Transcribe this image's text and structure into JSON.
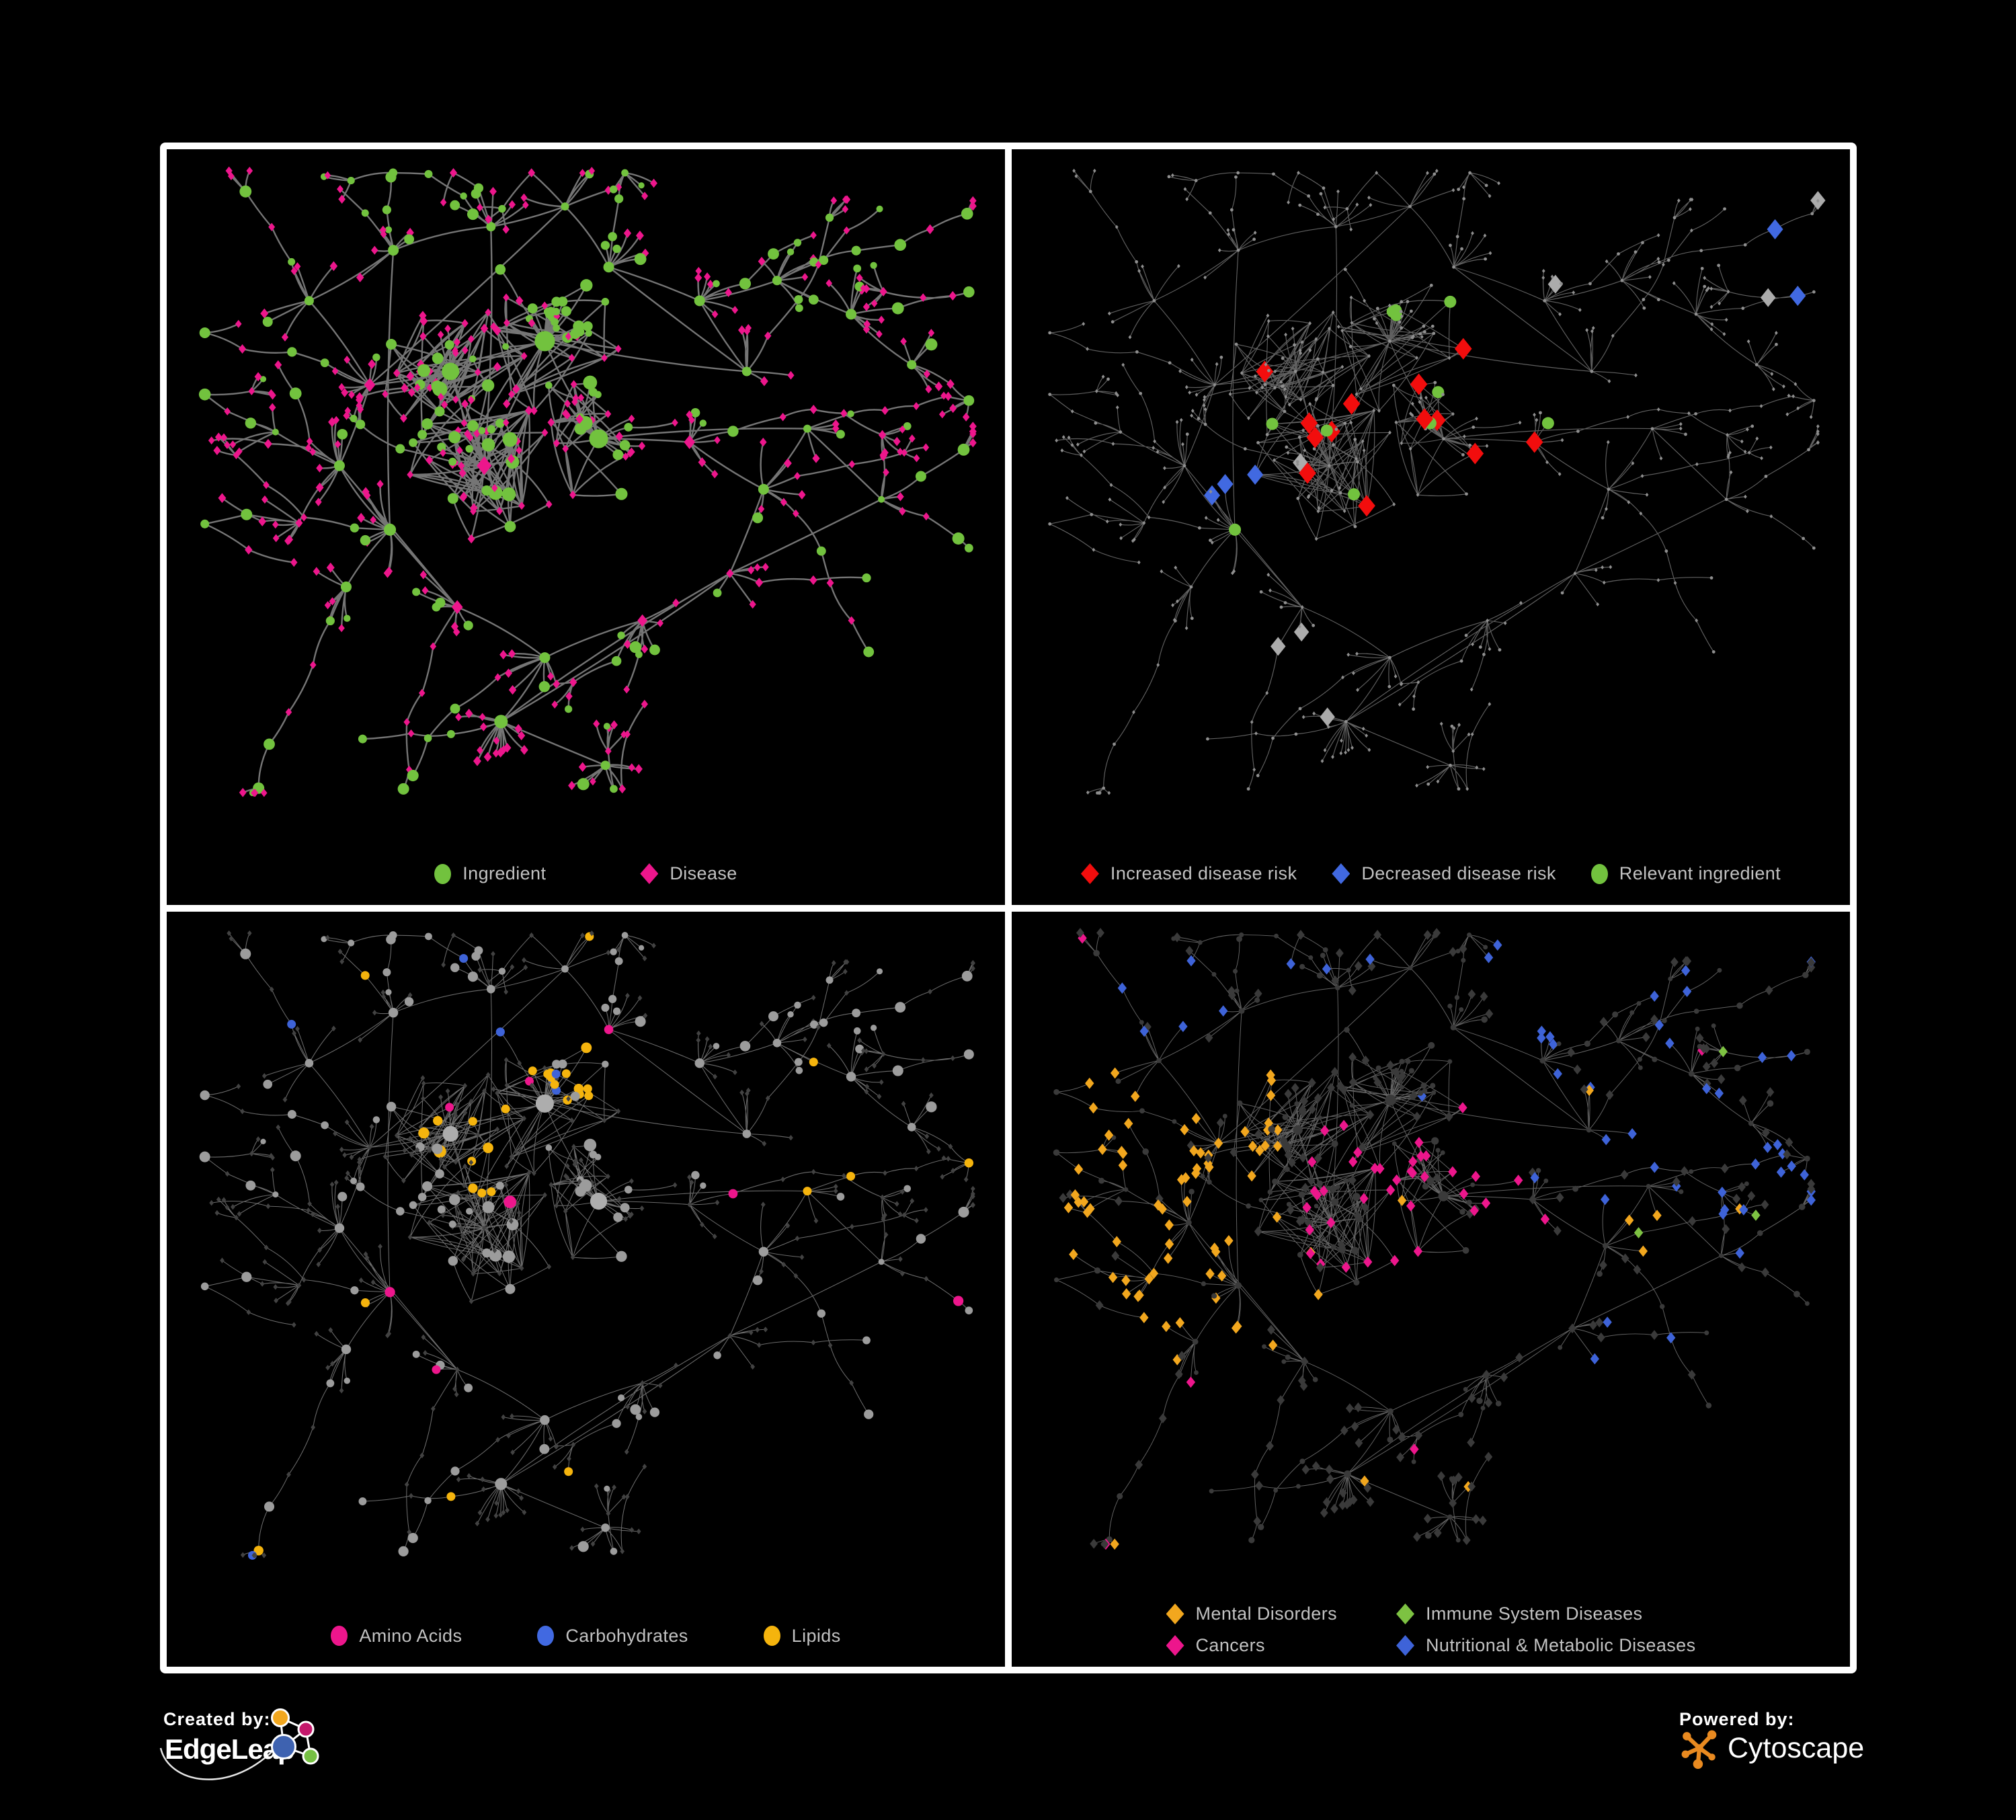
{
  "colors": {
    "green": "#72C23E",
    "pink": "#ED168C",
    "red": "#F20D0D",
    "blue": "#4169E1",
    "yellow": "#F5B40D",
    "orange": "#F2A71E",
    "immuneGreen": "#7DC242",
    "catBlue": "#3E63D8",
    "grayNode": "#9C9C9C",
    "grayHub": "#ADADAD",
    "darkNode": "#3A3A3A",
    "darkDiamond": "#424242",
    "grayDiamond": "#ABABAB",
    "tinyDot": "#8F8F8F",
    "edge1": "#7B7B7B",
    "edge2": "#6A6A6A",
    "edge3": "#8F8F8F",
    "edge4": "#7A7A7A",
    "legendText": "#C2C2C2",
    "bg": "#000000",
    "frame": "#FFFFFF"
  },
  "panels": [
    {
      "key": "ingredient-disease",
      "legend": [
        {
          "label": "Ingredient",
          "shape": "circle",
          "color": "#72C23E"
        },
        {
          "label": "Disease",
          "shape": "diamond",
          "color": "#ED168C"
        }
      ]
    },
    {
      "key": "disease-risk",
      "legend": [
        {
          "label": "Increased disease risk",
          "shape": "diamond",
          "color": "#F20D0D"
        },
        {
          "label": "Decreased disease risk",
          "shape": "diamond",
          "color": "#4169E1"
        },
        {
          "label": "Relevant ingredient",
          "shape": "circle",
          "color": "#72C23E"
        }
      ]
    },
    {
      "key": "nutrient-classes",
      "legend": [
        {
          "label": "Amino Acids",
          "shape": "circle",
          "color": "#ED168C"
        },
        {
          "label": "Carbohydrates",
          "shape": "circle",
          "color": "#4169E1"
        },
        {
          "label": "Lipids",
          "shape": "circle",
          "color": "#F5B40D"
        }
      ]
    },
    {
      "key": "disease-categories",
      "legend": [
        {
          "label": "Mental Disorders",
          "shape": "diamond",
          "color": "#F2A71E"
        },
        {
          "label": "Immune System Diseases",
          "shape": "diamond",
          "color": "#7DC242"
        },
        {
          "label": "Cancers",
          "shape": "diamond",
          "color": "#ED168C"
        },
        {
          "label": "Nutritional & Metabolic Diseases",
          "shape": "diamond",
          "color": "#3E63D8"
        }
      ]
    }
  ],
  "footer": {
    "created_by": "Created by:",
    "brand": "EdgeLeap",
    "powered_by": "Powered by:",
    "engine": "Cytoscape",
    "edgeleap_logo_colors": {
      "orange": "#F2A71E",
      "magenta": "#C4176B",
      "blue": "#3E62B0",
      "green": "#76C043"
    },
    "cytoscape_color": "#E98A20"
  },
  "network": {
    "seed": 42
  }
}
